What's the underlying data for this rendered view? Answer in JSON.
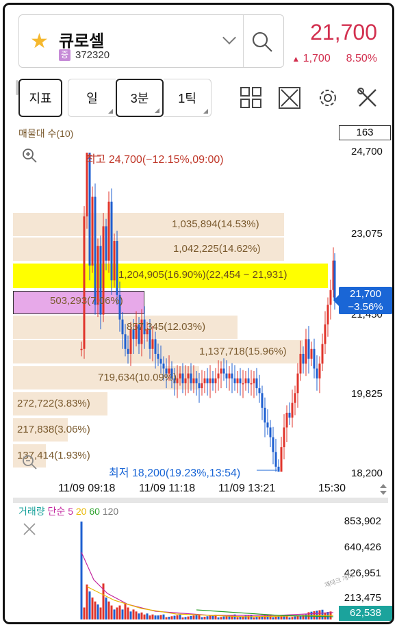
{
  "header": {
    "stock_name": "큐로셀",
    "market_badge": "증",
    "stock_code": "372320",
    "price": "21,700",
    "change_arrow": "▲",
    "change_amount": "1,700",
    "change_percent": "8.50%",
    "price_color": "#d2304f"
  },
  "toolbar": {
    "indicator_label": "지표",
    "period_day": "일",
    "period_3min": "3분",
    "period_1tick": "1틱",
    "icons": [
      "grid-icon",
      "expand-icon",
      "gear-icon",
      "tools-icon"
    ]
  },
  "chart": {
    "volume_profile_title": "매물대 수(10)",
    "count_value": "163",
    "high_label": "최고 24,700(−12.15%,09:00)",
    "low_label": "최저 18,200(19.23%,13:54)",
    "current_price_tag_line1": "21,700",
    "current_price_tag_line2": "−3.56%",
    "y_axis": [
      "24,700",
      "23,075",
      "21,450",
      "19,825",
      "18,200"
    ],
    "x_axis": [
      "11/09 09:18",
      "11/09 11:18",
      "11/09 13:21",
      "15:30"
    ],
    "volume_profile": [
      {
        "label": "1,035,894(14.53%)"
      },
      {
        "label": "1,042,225(14.62%)"
      },
      {
        "label": "1,204,905(16.90%)(22,454 − 21,931)"
      },
      {
        "label": "503,293(7.06%)"
      },
      {
        "label": "857,345(12.03%)"
      },
      {
        "label": "1,137,718(15.96%)"
      },
      {
        "label": "719,634(10.09%)"
      },
      {
        "label": "272,722(3.83%)"
      },
      {
        "label": "217,838(3.06%)"
      },
      {
        "label": "137,414(1.93%)"
      }
    ]
  },
  "volume_panel": {
    "title_main": "거래량",
    "title_type": "단순",
    "ma5": "5",
    "ma20": "20",
    "ma60": "60",
    "ma120": "120",
    "y_axis": [
      "853,902",
      "640,426",
      "426,951",
      "213,475"
    ],
    "current_volume": "62,538",
    "watermark": "재테크 개미"
  },
  "colors": {
    "up": "#e0342b",
    "down": "#1e5fd0",
    "volume_profile": "#f4e3cf",
    "highlight_max": "#ffff00",
    "highlight_current": "#e7a9e9"
  }
}
